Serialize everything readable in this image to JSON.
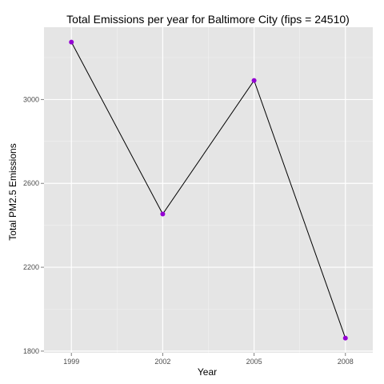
{
  "chart_data": {
    "type": "line",
    "title": "Total Emissions per year for Baltimore City (fips = 24510)",
    "xlabel": "Year",
    "ylabel": "Total PM2.5 Emissions",
    "x": [
      1999,
      2002,
      2005,
      2008
    ],
    "series": [
      {
        "values": [
          3274,
          2454,
          3091,
          1862
        ]
      }
    ],
    "xticks": [
      "1999",
      "2002",
      "2005",
      "2008"
    ],
    "yticks": [
      1800,
      2200,
      2600,
      3000
    ],
    "xlim": [
      1998.1,
      2008.9
    ],
    "ylim": [
      1792,
      3345
    ],
    "grid": true,
    "legend": "none",
    "colors": {
      "panel": "#e5e5e5",
      "grid_major": "#ffffff",
      "grid_minor": "#f2f2f2",
      "line": "#000000",
      "point": "#9400d3"
    }
  }
}
